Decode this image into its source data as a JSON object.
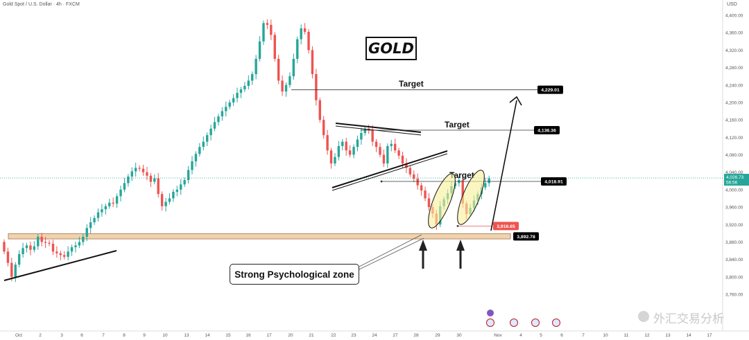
{
  "header": {
    "symbol_title": "Gold Spot / U.S. Dollar · 4h · FXCM",
    "currency": "USD"
  },
  "annotations": {
    "title_box": "GOLD",
    "zone_label": "Strong Psychological zone",
    "target_label": "Target"
  },
  "colors": {
    "up": "#26a69a",
    "down": "#ef5350",
    "zone_fill": "#f0d2b0",
    "highlight_fill": "#f8ef9a",
    "last_price_bg": "#26a69a",
    "stop_bg": "#ef5350",
    "label_bg": "#000000"
  },
  "watermark": "外汇交易分析",
  "chart_data": {
    "type": "candlestick",
    "title": "GOLD",
    "ylabel": "USD",
    "ylim": [
      3720,
      4420
    ],
    "yticks": [
      3760,
      3800,
      3840,
      3880,
      3920,
      3960,
      4000,
      4040,
      4080,
      4120,
      4160,
      4200,
      4240,
      4280,
      4320,
      4360,
      4400
    ],
    "ytick_labels": [
      "3,760.00",
      "3,800.00",
      "3,840.00",
      "3,880.00",
      "3,920.00",
      "3,960.00",
      "4,000.00",
      "4,040.00",
      "4,080.00",
      "4,120.00",
      "4,160.00",
      "4,200.00",
      "4,240.00",
      "4,280.00",
      "4,320.00",
      "4,360.00",
      "4,400.00"
    ],
    "xtick_labels": [
      "Oct",
      "2",
      "3",
      "6",
      "7",
      "8",
      "9",
      "10",
      "13",
      "14",
      "15",
      "16",
      "17",
      "20",
      "21",
      "22",
      "23",
      "24",
      "27",
      "28",
      "29",
      "30",
      "Nov",
      "4",
      "5",
      "6",
      "7",
      "10",
      "11",
      "12",
      "13",
      "14",
      "17"
    ],
    "last_price": "4,026.73",
    "countdown": "56:56",
    "levels": [
      {
        "label": "4,229.01",
        "value": 4229.01,
        "type": "target"
      },
      {
        "label": "4,136.36",
        "value": 4136.36,
        "type": "target"
      },
      {
        "label": "4,018.91",
        "value": 4018.91,
        "type": "target"
      },
      {
        "label": "3,916.65",
        "value": 3916.65,
        "type": "stop"
      },
      {
        "label": "3,892.78",
        "value": 3892.78,
        "type": "support"
      }
    ],
    "closes": [
      3858,
      3832,
      3800,
      3828,
      3852,
      3866,
      3872,
      3862,
      3870,
      3892,
      3880,
      3878,
      3876,
      3858,
      3854,
      3850,
      3846,
      3858,
      3868,
      3872,
      3880,
      3892,
      3912,
      3925,
      3935,
      3948,
      3955,
      3962,
      3970,
      3968,
      3985,
      4000,
      4015,
      4030,
      4042,
      4050,
      4048,
      4040,
      4032,
      4018,
      4026,
      3990,
      3962,
      3972,
      3980,
      3995,
      4000,
      4012,
      4022,
      4045,
      4065,
      4082,
      4098,
      4110,
      4125,
      4140,
      4155,
      4168,
      4180,
      4190,
      4200,
      4210,
      4222,
      4230,
      4238,
      4250,
      4265,
      4300,
      4340,
      4382,
      4378,
      4355,
      4300,
      4250,
      4225,
      4240,
      4260,
      4300,
      4345,
      4370,
      4362,
      4320,
      4265,
      4205,
      4160,
      4125,
      4090,
      4060,
      4075,
      4100,
      4110,
      4090,
      4080,
      4098,
      4115,
      4130,
      4140,
      4136,
      4110,
      4098,
      4080,
      4060,
      4100,
      4105,
      4090,
      4078,
      4060,
      4050,
      4035,
      4025,
      4010,
      3998,
      3980,
      3960,
      3945,
      3920,
      3962,
      3978,
      3992,
      4008,
      4015,
      4022,
      3968,
      3944,
      3958,
      3975,
      3990,
      4005,
      4015,
      4026
    ]
  }
}
